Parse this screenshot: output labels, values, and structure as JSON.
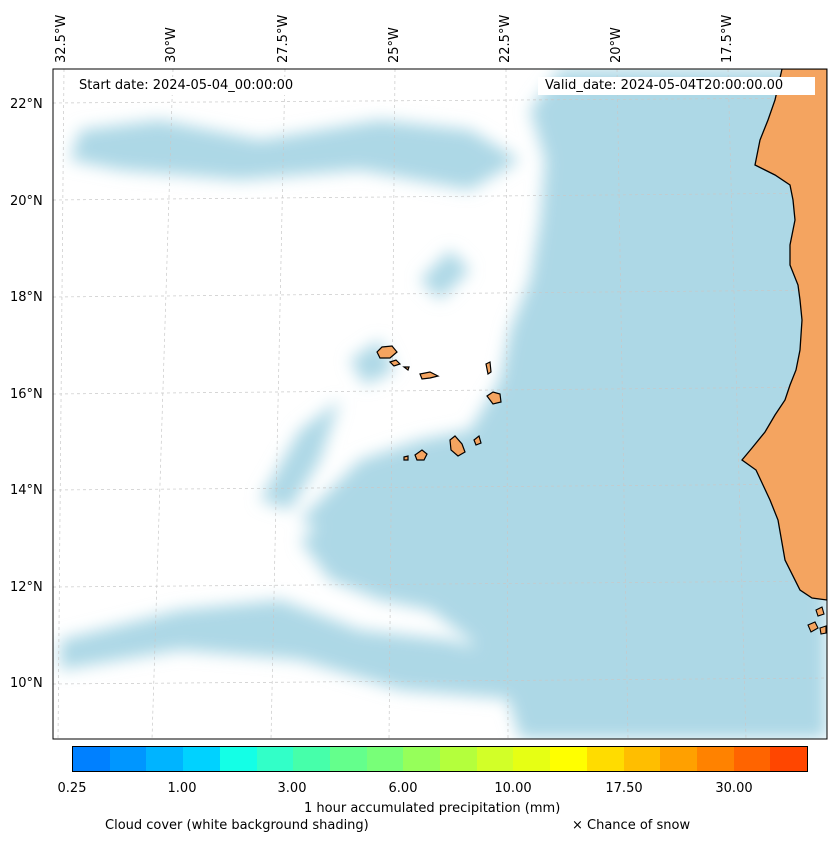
{
  "map": {
    "start_date": "Start date: 2024-05-04_00:00:00",
    "valid_date": "Valid_date: 2024-05-04T20:00:00.00",
    "longitude_labels": [
      "32.5°W",
      "30°W",
      "27.5°W",
      "25°W",
      "22.5°W",
      "20°W",
      "17.5°W"
    ],
    "latitude_labels": [
      "22°N",
      "20°N",
      "18°N",
      "16°N",
      "14°N",
      "12°N",
      "10°N"
    ],
    "colors": {
      "land": "#f4a460",
      "cloud_cover": "#add8e6",
      "background": "#ffffff",
      "gridline": "#c8c8c8"
    }
  },
  "colorbar": {
    "label": "1 hour accumulated precipitation (mm)",
    "tick_labels": [
      "0.25",
      "1.00",
      "3.00",
      "6.00",
      "10.00",
      "17.50",
      "30.00"
    ],
    "colors": [
      "#0080ff",
      "#0096ff",
      "#00b4ff",
      "#00d2ff",
      "#14ffe6",
      "#32ffc8",
      "#46ffaa",
      "#64ff8c",
      "#78ff78",
      "#96ff5a",
      "#b4ff3c",
      "#d2ff28",
      "#e6ff14",
      "#ffff00",
      "#ffdc00",
      "#ffbe00",
      "#ffa000",
      "#ff8200",
      "#ff6400",
      "#ff4600"
    ]
  },
  "legend": {
    "cloud_cover": "Cloud cover (white background shading)",
    "snow": "× Chance of snow"
  }
}
